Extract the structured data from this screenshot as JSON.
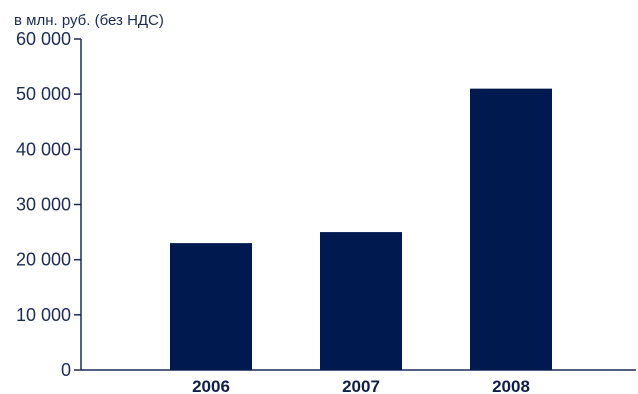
{
  "chart_data": {
    "type": "bar",
    "unit_label": "в млн. руб. (без НДС)",
    "categories": [
      "2006",
      "2007",
      "2008"
    ],
    "values": [
      23000,
      25000,
      51000
    ],
    "ylim": [
      0,
      60000
    ],
    "y_ticks": [
      0,
      10000,
      20000,
      30000,
      40000,
      50000,
      60000
    ],
    "y_tick_labels": [
      "0",
      "10 000",
      "20 000",
      "30 000",
      "40 000",
      "50 000",
      "60 000"
    ],
    "grid": false,
    "bar_color": "#001a4f",
    "axis_color": "#1a2b55"
  }
}
